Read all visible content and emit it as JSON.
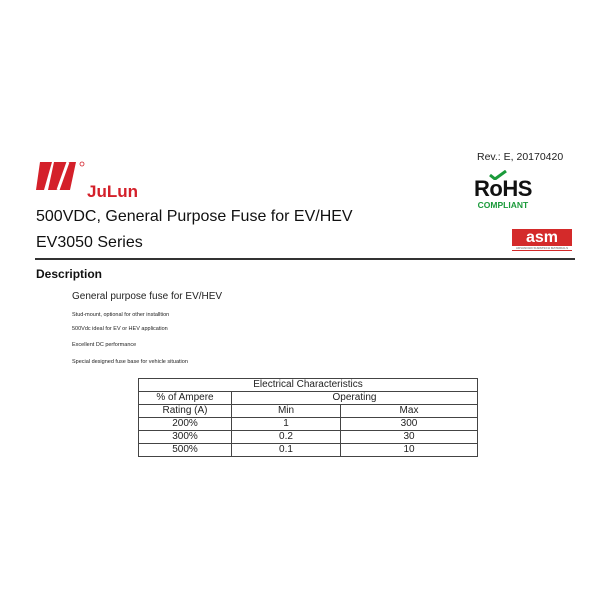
{
  "header": {
    "revision": "Rev.: E, 20170420",
    "brand": "JuLun",
    "brand_color": "#d4202a",
    "title": "500VDC, General Purpose Fuse for EV/HEV",
    "series": "EV3050 Series"
  },
  "badges": {
    "rohs": "RoHS",
    "rohs_sub": "COMPLIANT",
    "asm": "asm",
    "asm_sub": "ADVANCED SUBSTECH MATERIALS"
  },
  "description": {
    "heading": "Description",
    "items": [
      "General purpose fuse for EV/HEV",
      "Stud-mount, optional for other installtion",
      "500Vdc ideal for EV or HEV application",
      "Excellent DC performance",
      "Special designed fuse base for vehicle situation"
    ]
  },
  "table": {
    "title": "Electrical Characteristics",
    "col1_line1": "% of Ampere",
    "col1_line2": "Rating (A)",
    "group": "Operating",
    "min": "Min",
    "max": "Max",
    "rows": [
      [
        "200%",
        "1",
        "300"
      ],
      [
        "300%",
        "0.2",
        "30"
      ],
      [
        "500%",
        "0.1",
        "10"
      ]
    ]
  }
}
